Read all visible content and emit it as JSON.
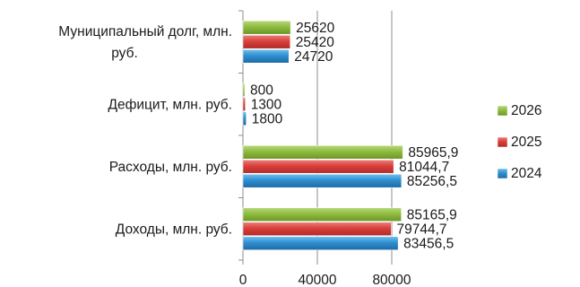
{
  "chart_data": {
    "type": "bar",
    "orientation": "horizontal",
    "categories": [
      "Муниципальный долг, млн.|руб.",
      "Дефицит, млн. руб.",
      "Расходы, млн. руб.",
      "Доходы, млн. руб."
    ],
    "series": [
      {
        "name": "2026",
        "color": "#8fbc3e",
        "values": [
          25620,
          800,
          85965.9,
          85165.9
        ],
        "labels": [
          "25620",
          "800",
          "85965,9",
          "85165,9"
        ]
      },
      {
        "name": "2025",
        "color": "#d9403c",
        "values": [
          25420,
          1300,
          81044.7,
          79744.7
        ],
        "labels": [
          "25420",
          "1300",
          "81044,7",
          "79744,7"
        ]
      },
      {
        "name": "2024",
        "color": "#2f8fd0",
        "values": [
          24720,
          1800,
          85256.5,
          83456.5
        ],
        "labels": [
          "24720",
          "1800",
          "85256,5",
          "83456,5"
        ]
      }
    ],
    "legend_order": [
      "2026",
      "2025",
      "2024"
    ],
    "xlim": [
      0,
      120000
    ],
    "xticks": [
      0,
      40000,
      80000
    ],
    "xtick_labels": [
      "0",
      "40000",
      "80000"
    ],
    "gridlines": "vertical",
    "legend_position": "right",
    "title": "",
    "xlabel": "",
    "ylabel": ""
  }
}
